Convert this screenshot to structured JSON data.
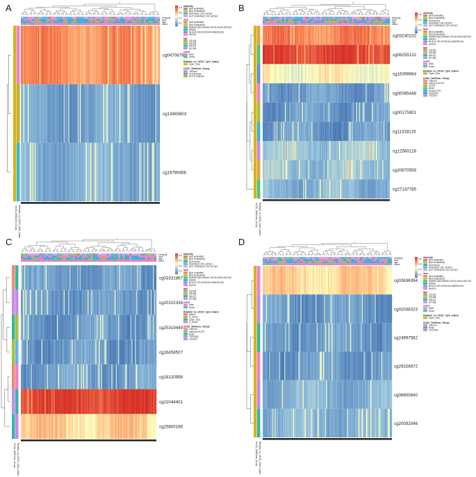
{
  "figure": {
    "description_free": true
  },
  "chart_data": [
    {
      "type": "heatmap",
      "panel": "A",
      "annotation_rows": [
        "ethnicity",
        "race",
        "age",
        "event"
      ],
      "row_annotation_titles": [
        "UCSC_RefGene_Group",
        "Relation_to_UCSC_CpG_Island"
      ],
      "rows": [
        {
          "label": "cg04708790",
          "level": 0.75
        },
        {
          "label": "cg13483603",
          "level": 0.15
        },
        {
          "label": "cg19789466",
          "level": 0.2
        }
      ],
      "scale_ticks": [
        "0.8",
        "0.6",
        "0.4",
        "0.2"
      ],
      "legend": [
        {
          "title": "ethnicity",
          "items": [
            {
              "label": "[Not Available]",
              "color": "#e07b7b"
            },
            {
              "label": "[Not Evaluated]",
              "color": "#8fd14f"
            },
            {
              "label": "HISPANIC OR LATINO",
              "color": "#5fb8e8"
            },
            {
              "label": "NOT HISPANIC OR LATINO",
              "color": "#e2a0e8"
            }
          ]
        },
        {
          "title": "race",
          "items": [
            {
              "label": "[Not Available]",
              "color": "#f08a6a"
            },
            {
              "label": "[Not Evaluated]",
              "color": "#c7c23a"
            },
            {
              "label": "AMERICAN INDIAN OR ALASKA NATIVE",
              "color": "#4cc48a"
            },
            {
              "label": "ASIAN",
              "color": "#36b6d6"
            },
            {
              "label": "BLACK OR AFRICAN AMERICAN",
              "color": "#9a8ae6"
            },
            {
              "label": "WHITE",
              "color": "#ef86c6"
            }
          ]
        },
        {
          "title": "age",
          "items": [
            {
              "label": "(25,45]",
              "color": "#f08a6a"
            },
            {
              "label": "(45,58]",
              "color": "#8fcb46"
            },
            {
              "label": "(58,67]",
              "color": "#36b6d6"
            },
            {
              "label": "(67,85]",
              "color": "#d68ae0"
            }
          ]
        },
        {
          "title": "event",
          "items": [
            {
              "label": "Alive",
              "color": "#ef7fd6"
            },
            {
              "label": "Dead",
              "color": "#4ec8a6"
            }
          ]
        },
        {
          "title": "Relation_to_UCSC_CpG_Island",
          "items": [
            {
              "label": "Open_Sea",
              "color": "#d4b31e"
            }
          ]
        },
        {
          "title": "UCSC_RefGene_Group",
          "items": [
            {
              "label": "1stExon",
              "color": "#ef7fd6"
            },
            {
              "label": "3'UTR;Body",
              "color": "#36b6d6"
            },
            {
              "label": "5'UTR;1stExon",
              "color": "#c7b21e"
            }
          ]
        }
      ]
    },
    {
      "type": "heatmap",
      "panel": "B",
      "annotation_rows": [
        "ethnicity",
        "race",
        "age",
        "event"
      ],
      "row_annotation_titles": [
        "UCSC_RefGene_Group",
        "Relation_to_UCSC_CpG_Island"
      ],
      "rows": [
        {
          "label": "cg03240232",
          "level": 0.78
        },
        {
          "label": "cg06255132",
          "level": 0.95
        },
        {
          "label": "cg16399664",
          "level": 0.5
        },
        {
          "label": "cg00085448",
          "level": 0.12
        },
        {
          "label": "cg00175901",
          "level": 0.12
        },
        {
          "label": "cg11318133",
          "level": 0.12
        },
        {
          "label": "cg12560128",
          "level": 0.28
        },
        {
          "label": "cg20870559",
          "level": 0.25
        },
        {
          "label": "cg27147785",
          "level": 0.22
        }
      ],
      "scale_ticks": [
        "0.8",
        "0.6",
        "0.4",
        "0.2"
      ],
      "legend": [
        {
          "title": "ethnicity",
          "items": [
            {
              "label": "[Not Available]",
              "color": "#e07b7b"
            },
            {
              "label": "[Not Evaluated]",
              "color": "#a6c23a"
            },
            {
              "label": "[Unknown]",
              "color": "#36b6a6"
            },
            {
              "label": "HISPANIC OR LATINO",
              "color": "#5fb8e8"
            },
            {
              "label": "NOT HISPANIC OR LATINO",
              "color": "#e2a0e8"
            }
          ]
        },
        {
          "title": "race",
          "items": [
            {
              "label": "[Not Available]",
              "color": "#f08a6a"
            },
            {
              "label": "[Not Evaluated]",
              "color": "#c7c23a"
            },
            {
              "label": "AMERICAN INDIAN OR ALASKA NATIVE",
              "color": "#4cc48a"
            },
            {
              "label": "ASIAN",
              "color": "#36b6d6"
            },
            {
              "label": "BLACK OR AFRICAN AMERICAN",
              "color": "#9a8ae6"
            },
            {
              "label": "WHITE",
              "color": "#ef86c6"
            }
          ]
        },
        {
          "title": "age",
          "items": [
            {
              "label": "(25,45]",
              "color": "#f08a6a"
            },
            {
              "label": "(45,58]",
              "color": "#8fcb46"
            },
            {
              "label": "(58,67]",
              "color": "#36b6d6"
            },
            {
              "label": "(67,85]",
              "color": "#d68ae0"
            }
          ]
        },
        {
          "title": "event",
          "items": [
            {
              "label": "Alive",
              "color": "#ef7fd6"
            },
            {
              "label": "Dead",
              "color": "#4ec8a6"
            }
          ]
        },
        {
          "title": "Relation_to_UCSC_CpG_Island",
          "items": [
            {
              "label": "Open_Sea",
              "color": "#d4b31e"
            }
          ]
        },
        {
          "title": "UCSC_RefGene_Group",
          "items": [
            {
              "label": "1stExon",
              "color": "#ef7fd6"
            },
            {
              "label": "1stExon;3'UTR",
              "color": "#e2a33e"
            },
            {
              "label": "3'UTR",
              "color": "#a6c23a"
            },
            {
              "label": "Body",
              "color": "#4cc48a"
            },
            {
              "label": "Body;5'UTR",
              "color": "#36b6d6"
            },
            {
              "label": "TSS1500",
              "color": "#5f8ee8"
            },
            {
              "label": "TSS200",
              "color": "#c78ae6"
            }
          ]
        }
      ]
    },
    {
      "type": "heatmap",
      "panel": "C",
      "annotation_rows": [
        "ethnicity",
        "race",
        "age",
        "event"
      ],
      "row_annotation_titles": [
        "UCSC_RefGene_Group",
        "Relation_to_UCSC_CpG_Island"
      ],
      "rows": [
        {
          "label": "cg03331867",
          "level": 0.12
        },
        {
          "label": "cg20102336",
          "level": 0.12
        },
        {
          "label": "cg25319449",
          "level": 0.12
        },
        {
          "label": "cg16458507",
          "level": 0.12
        },
        {
          "label": "cg18120998",
          "level": 0.14
        },
        {
          "label": "cg22044401",
          "level": 0.95
        },
        {
          "label": "cg25800166",
          "level": 0.6
        }
      ],
      "scale_ticks": [
        "0.8",
        "0.6",
        "0.4",
        "0.2"
      ],
      "legend": [
        {
          "title": "ethnicity",
          "items": [
            {
              "label": "[Not Available]",
              "color": "#e07b7b"
            },
            {
              "label": "[Not Evaluated]",
              "color": "#a6c23a"
            },
            {
              "label": "[Unknown]",
              "color": "#36b6a6"
            },
            {
              "label": "HISPANIC OR LATINO",
              "color": "#5fb8e8"
            },
            {
              "label": "NOT HISPANIC OR LATINO",
              "color": "#e2a0e8"
            }
          ]
        },
        {
          "title": "race",
          "items": [
            {
              "label": "[Not Available]",
              "color": "#f08a6a"
            },
            {
              "label": "[Not Evaluated]",
              "color": "#c7c23a"
            },
            {
              "label": "AMERICAN INDIAN OR ALASKA NATIVE",
              "color": "#4cc48a"
            },
            {
              "label": "ASIAN",
              "color": "#36b6d6"
            },
            {
              "label": "BLACK OR AFRICAN AMERICAN",
              "color": "#9a8ae6"
            },
            {
              "label": "WHITE",
              "color": "#ef86c6"
            }
          ]
        },
        {
          "title": "age",
          "items": [
            {
              "label": "(25,45]",
              "color": "#f08a6a"
            },
            {
              "label": "(45,58]",
              "color": "#8fcb46"
            },
            {
              "label": "(58,67]",
              "color": "#36b6d6"
            },
            {
              "label": "(67,85]",
              "color": "#d68ae0"
            }
          ]
        },
        {
          "title": "event",
          "items": [
            {
              "label": "Alive",
              "color": "#ef7fd6"
            },
            {
              "label": "Dead",
              "color": "#4ec8a6"
            }
          ]
        },
        {
          "title": "Relation_to_UCSC_CpG_Island",
          "items": [
            {
              "label": "Island",
              "color": "#f08a6a"
            },
            {
              "label": "N_Shore",
              "color": "#a6c23a"
            },
            {
              "label": "Open_Sea",
              "color": "#36b6a6"
            },
            {
              "label": "S_Shore",
              "color": "#c78ae6"
            }
          ]
        },
        {
          "title": "UCSC_RefGene_Group",
          "items": [
            {
              "label": "1stExon",
              "color": "#ef7fd6"
            },
            {
              "label": "1stExon;5'UTR",
              "color": "#a6c23a"
            },
            {
              "label": "Body",
              "color": "#36b6a6"
            },
            {
              "label": "TSS1500",
              "color": "#5fb8e8"
            },
            {
              "label": "TSS200",
              "color": "#c78ae6"
            }
          ]
        }
      ]
    },
    {
      "type": "heatmap",
      "panel": "D",
      "annotation_rows": [
        "ethnicity",
        "race",
        "age",
        "event"
      ],
      "row_annotation_titles": [
        "UCSC_RefGene_Group",
        "Relation_to_UCSC_CpG_Island"
      ],
      "rows": [
        {
          "label": "cg03636394",
          "level": 0.6
        },
        {
          "label": "cg02038323",
          "level": 0.12
        },
        {
          "label": "cg24997562",
          "level": 0.12
        },
        {
          "label": "cg26328872",
          "level": 0.12
        },
        {
          "label": "cg06800840",
          "level": 0.2
        },
        {
          "label": "cg20092046",
          "level": 0.2
        }
      ],
      "scale_ticks": [
        "0.8",
        "0.6",
        "0.4",
        "0.2"
      ],
      "legend": [
        {
          "title": "ethnicity",
          "items": [
            {
              "label": "[Not Available]",
              "color": "#e07b7b"
            },
            {
              "label": "[Not Evaluated]",
              "color": "#a6c23a"
            },
            {
              "label": "[Unknown]",
              "color": "#36b6a6"
            },
            {
              "label": "HISPANIC OR LATINO",
              "color": "#5fb8e8"
            },
            {
              "label": "NOT HISPANIC OR LATINO",
              "color": "#e2a0e8"
            }
          ]
        },
        {
          "title": "race",
          "items": [
            {
              "label": "[Not Available]",
              "color": "#f08a6a"
            },
            {
              "label": "[Not Evaluated]",
              "color": "#c7c23a"
            },
            {
              "label": "AMERICAN INDIAN OR ALASKA NATIVE",
              "color": "#4cc48a"
            },
            {
              "label": "ASIAN",
              "color": "#36b6d6"
            },
            {
              "label": "BLACK OR AFRICAN AMERICAN",
              "color": "#9a8ae6"
            },
            {
              "label": "WHITE",
              "color": "#ef86c6"
            }
          ]
        },
        {
          "title": "age",
          "items": [
            {
              "label": "(25,45]",
              "color": "#f08a6a"
            },
            {
              "label": "(45,58]",
              "color": "#8fcb46"
            },
            {
              "label": "(58,67]",
              "color": "#36b6d6"
            },
            {
              "label": "(67,85]",
              "color": "#d68ae0"
            }
          ]
        },
        {
          "title": "event",
          "items": [
            {
              "label": "Alive",
              "color": "#ef7fd6"
            },
            {
              "label": "Dead",
              "color": "#4ec8a6"
            }
          ]
        },
        {
          "title": "Relation_to_UCSC_CpG_Island",
          "items": [
            {
              "label": "Open_Sea",
              "color": "#d4b31e"
            }
          ]
        },
        {
          "title": "UCSC_RefGene_Group",
          "items": [
            {
              "label": "1stExon",
              "color": "#ef7fd6"
            },
            {
              "label": "Body",
              "color": "#36b6a6"
            },
            {
              "label": "TSS1500",
              "color": "#c78ae6"
            }
          ]
        }
      ]
    }
  ]
}
